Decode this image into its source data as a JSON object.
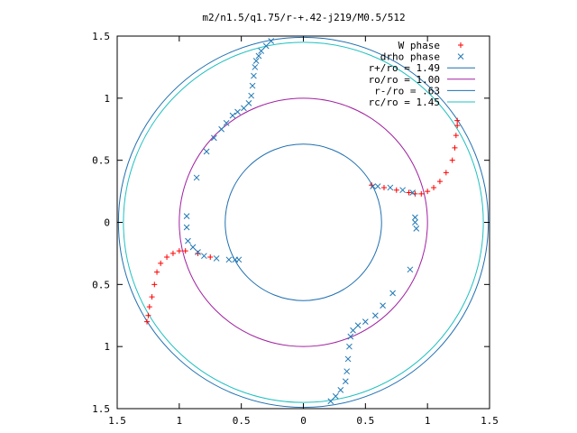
{
  "chart_data": {
    "type": "scatter",
    "title": "m2/n1.5/q1.75/r-+.42-j219/M0.5/512",
    "xlim": [
      -1.5,
      1.5
    ],
    "ylim": [
      -1.5,
      1.5
    ],
    "x_tick_values": [
      -1.5,
      -1,
      -0.5,
      0,
      0.5,
      1,
      1.5
    ],
    "x_tick_labels": [
      "1.5",
      "1",
      "0.5",
      "0",
      "0.5",
      "1",
      "1.5"
    ],
    "y_tick_values": [
      1.5,
      1,
      0.5,
      0,
      -0.5,
      -1,
      -1.5
    ],
    "y_tick_labels": [
      "1.5",
      "1",
      "0.5",
      "0",
      "0.5",
      "1",
      "1.5"
    ],
    "legend_position": "top-right",
    "grid": false,
    "series": [
      {
        "name": "W phase",
        "marker": "plus",
        "color": "#ff0000",
        "points": [
          [
            0.55,
            0.3
          ],
          [
            0.65,
            0.28
          ],
          [
            0.75,
            0.26
          ],
          [
            0.85,
            0.24
          ],
          [
            0.9,
            0.23
          ],
          [
            0.95,
            0.23
          ],
          [
            1.0,
            0.25
          ],
          [
            1.05,
            0.28
          ],
          [
            1.1,
            0.33
          ],
          [
            1.15,
            0.4
          ],
          [
            1.2,
            0.5
          ],
          [
            1.22,
            0.6
          ],
          [
            1.23,
            0.7
          ],
          [
            1.24,
            0.78
          ],
          [
            1.24,
            0.82
          ],
          [
            -0.75,
            -0.28
          ],
          [
            -0.85,
            -0.25
          ],
          [
            -0.95,
            -0.23
          ],
          [
            -1.0,
            -0.23
          ],
          [
            -1.05,
            -0.25
          ],
          [
            -1.1,
            -0.28
          ],
          [
            -1.15,
            -0.33
          ],
          [
            -1.18,
            -0.4
          ],
          [
            -1.2,
            -0.5
          ],
          [
            -1.22,
            -0.6
          ],
          [
            -1.24,
            -0.68
          ],
          [
            -1.25,
            -0.75
          ],
          [
            -1.26,
            -0.8
          ]
        ]
      },
      {
        "name": "drho phase",
        "marker": "cross",
        "color": "#1f77b4",
        "points": [
          [
            -0.26,
            1.46
          ],
          [
            -0.3,
            1.42
          ],
          [
            -0.34,
            1.38
          ],
          [
            -0.36,
            1.34
          ],
          [
            -0.38,
            1.3
          ],
          [
            -0.39,
            1.25
          ],
          [
            -0.4,
            1.18
          ],
          [
            -0.41,
            1.1
          ],
          [
            -0.42,
            1.02
          ],
          [
            -0.44,
            0.96
          ],
          [
            -0.48,
            0.92
          ],
          [
            -0.53,
            0.89
          ],
          [
            -0.57,
            0.86
          ],
          [
            -0.62,
            0.8
          ],
          [
            -0.66,
            0.75
          ],
          [
            -0.72,
            0.68
          ],
          [
            -0.78,
            0.57
          ],
          [
            -0.86,
            0.36
          ],
          [
            -0.94,
            0.05
          ],
          [
            -0.94,
            -0.04
          ],
          [
            -0.93,
            -0.15
          ],
          [
            -0.89,
            -0.2
          ],
          [
            -0.85,
            -0.24
          ],
          [
            -0.8,
            -0.27
          ],
          [
            -0.7,
            -0.29
          ],
          [
            -0.6,
            -0.3
          ],
          [
            -0.55,
            -0.3
          ],
          [
            -0.52,
            -0.3
          ],
          [
            0.56,
            0.29
          ],
          [
            0.6,
            0.29
          ],
          [
            0.7,
            0.28
          ],
          [
            0.8,
            0.26
          ],
          [
            0.88,
            0.24
          ],
          [
            0.9,
            0.04
          ],
          [
            0.9,
            0.0
          ],
          [
            0.91,
            -0.05
          ],
          [
            0.86,
            -0.38
          ],
          [
            0.72,
            -0.57
          ],
          [
            0.64,
            -0.67
          ],
          [
            0.58,
            -0.75
          ],
          [
            0.5,
            -0.8
          ],
          [
            0.44,
            -0.83
          ],
          [
            0.4,
            -0.87
          ],
          [
            0.38,
            -0.92
          ],
          [
            0.37,
            -1.0
          ],
          [
            0.36,
            -1.1
          ],
          [
            0.35,
            -1.2
          ],
          [
            0.34,
            -1.28
          ],
          [
            0.3,
            -1.35
          ],
          [
            0.26,
            -1.4
          ],
          [
            0.22,
            -1.44
          ]
        ]
      }
    ],
    "circles": [
      {
        "name": "r+/ro = 1.49",
        "radius": 1.49,
        "color": "#1f6fb0"
      },
      {
        "name": "ro/ro = 1.00",
        "radius": 1.0,
        "color": "#a020a0"
      },
      {
        "name": "r-/ro = .63",
        "radius": 0.63,
        "color": "#1f6fb0"
      },
      {
        "name": "rc/ro = 1.45",
        "radius": 1.45,
        "color": "#20c0c0"
      }
    ]
  }
}
